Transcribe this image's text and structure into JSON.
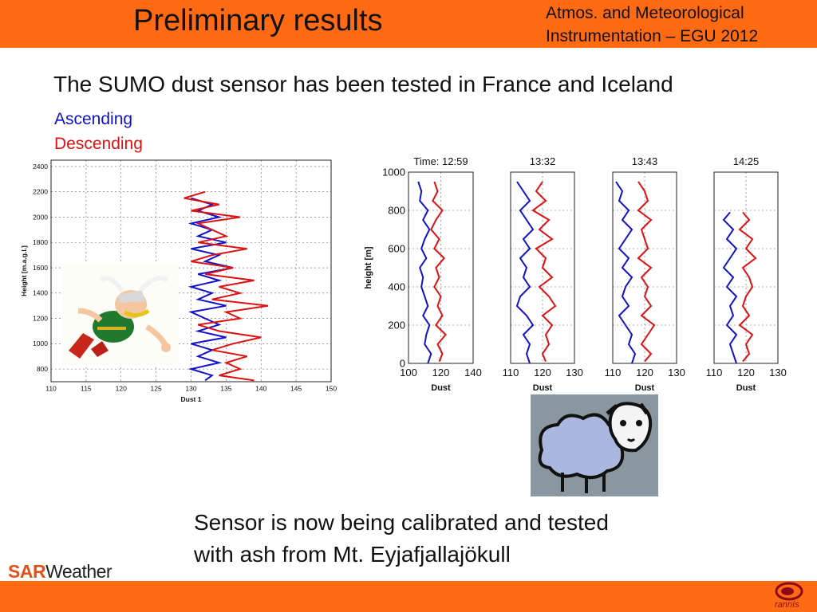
{
  "header": {
    "title": "Preliminary results",
    "conference_line1": "Atmos. and Meteorological",
    "conference_line2": "Instrumentation – EGU 2012",
    "bar_color": "#FF6A13"
  },
  "intro": "The SUMO dust sensor has been tested in France and Iceland",
  "legend": {
    "ascending": "Ascending",
    "descending": "Descending",
    "ascending_color": "#1212cc",
    "descending_color": "#dd1111"
  },
  "note_line1": "Sensor is now being calibrated and tested",
  "note_line2": "with ash from Mt. Eyjafjallajökull",
  "logo": {
    "sar": "SAR",
    "weather": "Weather"
  },
  "footer_logo": "rannís",
  "chart_data": [
    {
      "type": "line",
      "xlabel": "Dust 1",
      "ylabel": "Height [m.a.g.l.]",
      "xlim": [
        110,
        150
      ],
      "ylim": [
        700,
        2450
      ],
      "xticks": [
        110,
        115,
        120,
        125,
        130,
        135,
        140,
        145,
        150
      ],
      "yticks": [
        800,
        1000,
        1200,
        1400,
        1600,
        1800,
        2000,
        2200,
        2400
      ],
      "series": [
        {
          "color": "#1212cc",
          "y": [
            2150,
            2100,
            2050,
            2000,
            1950,
            1900,
            1850,
            1800,
            1750,
            1700,
            1650,
            1600,
            1550,
            1500,
            1450,
            1400,
            1350,
            1300,
            1250,
            1200,
            1150,
            1100,
            1050,
            1000,
            950,
            900,
            850,
            800,
            750,
            710
          ],
          "x": [
            130,
            133,
            131,
            134,
            130,
            133,
            131,
            135,
            130,
            134,
            132,
            136,
            131,
            134,
            130,
            133,
            131,
            135,
            130,
            132,
            134,
            131,
            135,
            130,
            133,
            131,
            134,
            130,
            133,
            132
          ]
        },
        {
          "color": "#dd1111",
          "y": [
            2200,
            2150,
            2100,
            2050,
            2000,
            1950,
            1900,
            1850,
            1800,
            1750,
            1700,
            1650,
            1600,
            1550,
            1500,
            1450,
            1400,
            1350,
            1300,
            1250,
            1200,
            1150,
            1100,
            1050,
            1000,
            950,
            900,
            850,
            800,
            750,
            710
          ],
          "x": [
            132,
            129,
            134,
            130,
            137,
            131,
            133,
            135,
            131,
            138,
            133,
            130,
            136,
            132,
            139,
            134,
            137,
            133,
            141,
            135,
            137,
            131,
            134,
            140,
            136,
            133,
            138,
            135,
            137,
            134,
            139
          ]
        }
      ]
    },
    {
      "type": "line",
      "title": "Time: 12:59",
      "xlabel": "Dust",
      "ylabel": "height [m]",
      "xlim": [
        100,
        140
      ],
      "ylim": [
        0,
        1000
      ],
      "xticks": [
        100,
        120,
        140
      ],
      "yticks": [
        0,
        200,
        400,
        600,
        800,
        1000
      ],
      "series": [
        {
          "color": "#1212cc",
          "y": [
            950,
            900,
            850,
            800,
            750,
            700,
            650,
            600,
            550,
            500,
            450,
            400,
            350,
            300,
            250,
            200,
            150,
            100,
            50,
            0
          ],
          "x": [
            106,
            108,
            107,
            112,
            109,
            113,
            110,
            108,
            111,
            107,
            109,
            108,
            110,
            112,
            109,
            113,
            111,
            110,
            114,
            112
          ]
        },
        {
          "color": "#dd1111",
          "y": [
            950,
            900,
            850,
            800,
            750,
            700,
            650,
            600,
            550,
            500,
            450,
            400,
            350,
            300,
            250,
            200,
            150,
            100,
            50,
            10
          ],
          "x": [
            116,
            118,
            115,
            121,
            117,
            114,
            119,
            116,
            122,
            117,
            119,
            116,
            120,
            118,
            121,
            117,
            123,
            118,
            121,
            119
          ]
        }
      ]
    },
    {
      "type": "line",
      "title": "13:32",
      "xlabel": "Dust",
      "ylabel": "",
      "xlim": [
        110,
        130
      ],
      "ylim": [
        0,
        1000
      ],
      "xticks": [
        110,
        120,
        130
      ],
      "yticks": [],
      "series": [
        {
          "color": "#1212cc",
          "y": [
            950,
            900,
            850,
            800,
            750,
            700,
            650,
            600,
            550,
            500,
            450,
            400,
            350,
            300,
            250,
            200,
            150,
            100,
            50,
            0
          ],
          "x": [
            112,
            114,
            116,
            113,
            115,
            117,
            114,
            116,
            113,
            115,
            114,
            116,
            113,
            112,
            115,
            117,
            114,
            116,
            115,
            116
          ]
        },
        {
          "color": "#dd1111",
          "y": [
            950,
            900,
            850,
            800,
            750,
            700,
            650,
            600,
            550,
            500,
            450,
            400,
            350,
            300,
            250,
            200,
            150,
            100,
            50,
            10
          ],
          "x": [
            120,
            118,
            121,
            117,
            122,
            119,
            123,
            118,
            121,
            120,
            123,
            119,
            122,
            124,
            120,
            123,
            121,
            122,
            120,
            121
          ]
        }
      ]
    },
    {
      "type": "line",
      "title": "13:43",
      "xlabel": "Dust",
      "ylabel": "",
      "xlim": [
        110,
        130
      ],
      "ylim": [
        0,
        1000
      ],
      "xticks": [
        110,
        120,
        130
      ],
      "yticks": [],
      "series": [
        {
          "color": "#1212cc",
          "y": [
            950,
            900,
            850,
            800,
            750,
            700,
            650,
            600,
            550,
            500,
            450,
            400,
            350,
            300,
            250,
            200,
            150,
            100,
            50,
            0
          ],
          "x": [
            111,
            113,
            112,
            115,
            113,
            116,
            114,
            112,
            115,
            113,
            116,
            114,
            113,
            115,
            112,
            114,
            116,
            115,
            117,
            116
          ]
        },
        {
          "color": "#dd1111",
          "y": [
            950,
            900,
            850,
            800,
            750,
            700,
            650,
            600,
            550,
            500,
            450,
            400,
            350,
            300,
            250,
            200,
            150,
            100,
            50,
            10
          ],
          "x": [
            118,
            120,
            121,
            118,
            122,
            119,
            120,
            121,
            118,
            122,
            119,
            121,
            120,
            122,
            119,
            123,
            121,
            119,
            122,
            120
          ]
        }
      ]
    },
    {
      "type": "line",
      "title": "14:25",
      "xlabel": "Dust",
      "ylabel": "",
      "xlim": [
        110,
        130
      ],
      "ylim": [
        0,
        1000
      ],
      "xticks": [
        110,
        120,
        130
      ],
      "yticks": [],
      "series": [
        {
          "color": "#1212cc",
          "y": [
            790,
            750,
            700,
            650,
            600,
            550,
            500,
            450,
            400,
            350,
            300,
            250,
            200,
            150,
            100,
            50,
            0
          ],
          "x": [
            115,
            113,
            116,
            114,
            117,
            115,
            113,
            116,
            114,
            117,
            115,
            116,
            114,
            117,
            115,
            116,
            117
          ]
        },
        {
          "color": "#dd1111",
          "y": [
            790,
            750,
            700,
            650,
            600,
            550,
            500,
            450,
            400,
            350,
            300,
            250,
            200,
            150,
            100,
            50,
            10
          ],
          "x": [
            119,
            121,
            118,
            122,
            120,
            123,
            119,
            121,
            122,
            120,
            119,
            121,
            118,
            122,
            120,
            121,
            119
          ]
        }
      ]
    }
  ]
}
